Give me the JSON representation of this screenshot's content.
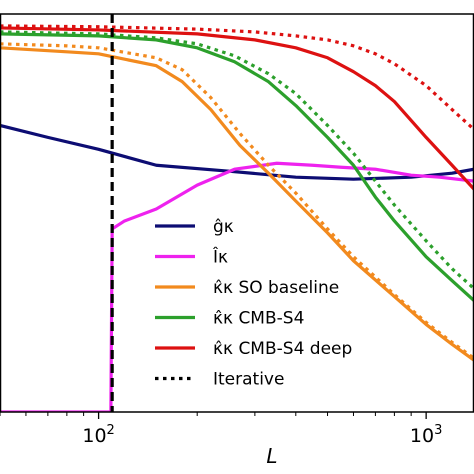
{
  "chart_data": {
    "type": "line",
    "xscale": "log",
    "xlim": [
      50,
      1400
    ],
    "ylim": [
      0,
      1
    ],
    "xlabel": "L",
    "ylabel": "",
    "grid": false,
    "legend_placement": "lower-right",
    "x_ticks": [
      {
        "value": 100,
        "base": "10",
        "exp": "2"
      },
      {
        "value": 1000,
        "base": "10",
        "exp": "3"
      }
    ],
    "vline": {
      "x": 110,
      "color": "#000000",
      "style": "dashed"
    },
    "series": [
      {
        "name": "ĝκ",
        "color": "#0d0d73",
        "style": "solid",
        "points": [
          [
            50,
            0.72
          ],
          [
            70,
            0.69
          ],
          [
            100,
            0.66
          ],
          [
            150,
            0.62
          ],
          [
            250,
            0.605
          ],
          [
            400,
            0.59
          ],
          [
            600,
            0.585
          ],
          [
            900,
            0.59
          ],
          [
            1200,
            0.6
          ],
          [
            1400,
            0.61
          ]
        ]
      },
      {
        "name": "Îκ",
        "color": "#ee22ee",
        "style": "solid",
        "points": [
          [
            50,
            0.0
          ],
          [
            108,
            0.0
          ],
          [
            109,
            0.0
          ],
          [
            110,
            0.46
          ],
          [
            120,
            0.48
          ],
          [
            150,
            0.51
          ],
          [
            200,
            0.57
          ],
          [
            260,
            0.61
          ],
          [
            350,
            0.625
          ],
          [
            450,
            0.62
          ],
          [
            550,
            0.615
          ],
          [
            700,
            0.61
          ],
          [
            900,
            0.595
          ],
          [
            1100,
            0.59
          ],
          [
            1400,
            0.58
          ]
        ]
      },
      {
        "name": "κ̂κ SO baseline",
        "color": "#f28a1e",
        "style": "solid",
        "points": [
          [
            50,
            0.915
          ],
          [
            80,
            0.905
          ],
          [
            100,
            0.9
          ],
          [
            150,
            0.87
          ],
          [
            180,
            0.83
          ],
          [
            220,
            0.76
          ],
          [
            270,
            0.67
          ],
          [
            330,
            0.6
          ],
          [
            400,
            0.53
          ],
          [
            500,
            0.45
          ],
          [
            600,
            0.38
          ],
          [
            800,
            0.29
          ],
          [
            1000,
            0.22
          ],
          [
            1200,
            0.17
          ],
          [
            1400,
            0.13
          ]
        ]
      },
      {
        "name": "κ̂κ SO baseline (iterative)",
        "color": "#f28a1e",
        "style": "dotted",
        "points": [
          [
            50,
            0.925
          ],
          [
            80,
            0.92
          ],
          [
            100,
            0.915
          ],
          [
            150,
            0.89
          ],
          [
            180,
            0.86
          ],
          [
            220,
            0.79
          ],
          [
            270,
            0.7
          ],
          [
            330,
            0.62
          ],
          [
            400,
            0.55
          ],
          [
            500,
            0.46
          ],
          [
            600,
            0.39
          ],
          [
            800,
            0.295
          ],
          [
            1000,
            0.225
          ],
          [
            1200,
            0.175
          ],
          [
            1400,
            0.135
          ]
        ]
      },
      {
        "name": "κ̂κ CMB-S4",
        "color": "#2ca02c",
        "style": "solid",
        "points": [
          [
            50,
            0.95
          ],
          [
            100,
            0.945
          ],
          [
            150,
            0.935
          ],
          [
            200,
            0.915
          ],
          [
            260,
            0.88
          ],
          [
            330,
            0.83
          ],
          [
            400,
            0.77
          ],
          [
            500,
            0.69
          ],
          [
            600,
            0.62
          ],
          [
            700,
            0.54
          ],
          [
            800,
            0.48
          ],
          [
            1000,
            0.39
          ],
          [
            1200,
            0.33
          ],
          [
            1400,
            0.28
          ]
        ]
      },
      {
        "name": "κ̂κ CMB-S4 (iterative)",
        "color": "#2ca02c",
        "style": "dotted",
        "points": [
          [
            50,
            0.955
          ],
          [
            100,
            0.95
          ],
          [
            150,
            0.94
          ],
          [
            200,
            0.925
          ],
          [
            260,
            0.895
          ],
          [
            330,
            0.85
          ],
          [
            400,
            0.8
          ],
          [
            500,
            0.72
          ],
          [
            600,
            0.65
          ],
          [
            700,
            0.58
          ],
          [
            800,
            0.52
          ],
          [
            1000,
            0.43
          ],
          [
            1200,
            0.36
          ],
          [
            1400,
            0.31
          ]
        ]
      },
      {
        "name": "κ̂κ CMB-S4 deep",
        "color": "#dd1111",
        "style": "solid",
        "points": [
          [
            50,
            0.965
          ],
          [
            100,
            0.96
          ],
          [
            200,
            0.95
          ],
          [
            300,
            0.935
          ],
          [
            400,
            0.915
          ],
          [
            500,
            0.89
          ],
          [
            600,
            0.855
          ],
          [
            700,
            0.82
          ],
          [
            800,
            0.78
          ],
          [
            1000,
            0.69
          ],
          [
            1200,
            0.62
          ],
          [
            1400,
            0.56
          ]
        ]
      },
      {
        "name": "κ̂κ CMB-S4 deep (iterative)",
        "color": "#dd1111",
        "style": "dotted",
        "points": [
          [
            50,
            0.97
          ],
          [
            100,
            0.968
          ],
          [
            200,
            0.962
          ],
          [
            300,
            0.955
          ],
          [
            400,
            0.945
          ],
          [
            500,
            0.935
          ],
          [
            600,
            0.92
          ],
          [
            700,
            0.9
          ],
          [
            800,
            0.875
          ],
          [
            1000,
            0.82
          ],
          [
            1200,
            0.76
          ],
          [
            1400,
            0.71
          ]
        ]
      }
    ],
    "legend": [
      {
        "label": "ĝκ",
        "color": "#0d0d73",
        "style": "solid"
      },
      {
        "label": "Îκ",
        "color": "#ee22ee",
        "style": "solid"
      },
      {
        "label": "κ̂κ SO baseline",
        "color": "#f28a1e",
        "style": "solid"
      },
      {
        "label": "κ̂κ CMB-S4",
        "color": "#2ca02c",
        "style": "solid"
      },
      {
        "label": "κ̂κ CMB-S4 deep",
        "color": "#dd1111",
        "style": "solid"
      },
      {
        "label": "Iterative",
        "color": "#000000",
        "style": "dotted"
      }
    ]
  }
}
